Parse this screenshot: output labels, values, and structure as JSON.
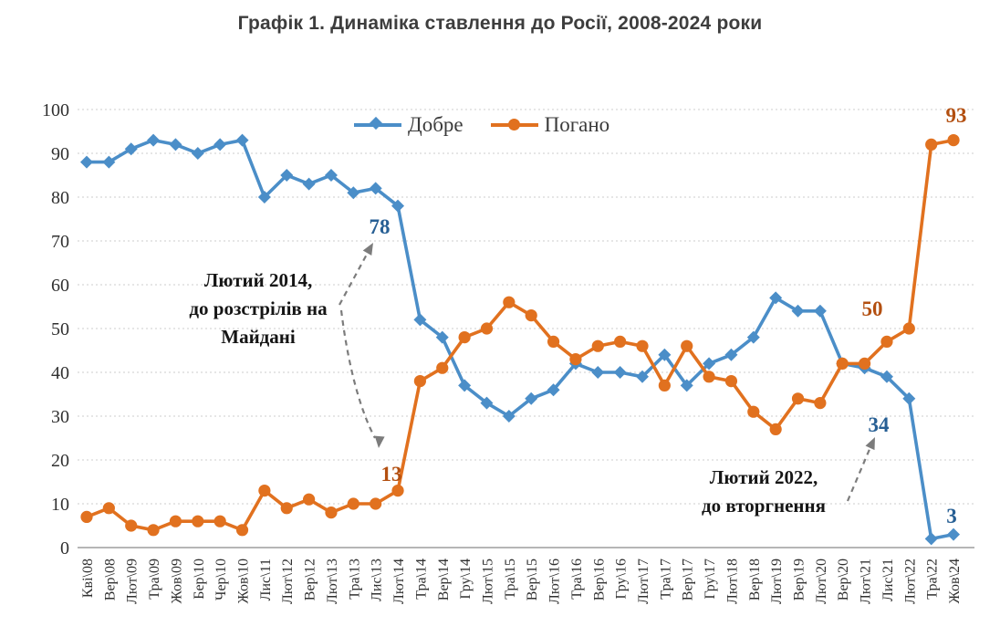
{
  "title": "Графік 1. Динаміка ставлення до Росії, 2008-2024 роки",
  "legend": {
    "good": "Добре",
    "bad": "Погано"
  },
  "colors": {
    "good_line": "#4b8ec8",
    "bad_line": "#e1711f",
    "good_label": "#275f94",
    "bad_label": "#b34f10",
    "grid": "#cdcdcd",
    "axis": "#9e9e9e",
    "tick_text": "#303030",
    "arrow": "#7c7c7c",
    "title_text": "#3d3d3d"
  },
  "annotations": {
    "maidan": {
      "line1": "Лютий 2014,",
      "line2": "до розстрілів на",
      "line3": "Майдані"
    },
    "invasion": {
      "line1": "Лютий 2022,",
      "line2": "до вторгнення"
    }
  },
  "callouts": {
    "good_2014": "78",
    "bad_2014": "13",
    "bad_2022": "50",
    "good_2022": "34",
    "bad_2024": "93",
    "good_2024": "3"
  },
  "chart_data": {
    "type": "line",
    "title": "Графік 1. Динаміка ставлення до Росії, 2008-2024 роки",
    "categories": [
      "Кві\\08",
      "Вер\\08",
      "Лют\\09",
      "Тра\\09",
      "Жов\\09",
      "Бер\\10",
      "Чер\\10",
      "Жов\\10",
      "Лис\\11",
      "Лют\\12",
      "Вер\\12",
      "Лют\\13",
      "Тра\\13",
      "Лис\\13",
      "Лют\\14",
      "Тра\\14",
      "Вер\\14",
      "Гру\\14",
      "Лют\\15",
      "Тра\\15",
      "Вер\\15",
      "Лют\\16",
      "Тра\\16",
      "Вер\\16",
      "Гру\\16",
      "Лют\\17",
      "Тра\\17",
      "Вер\\17",
      "Гру\\17",
      "Лют\\18",
      "Вер\\18",
      "Лют\\19",
      "Вер\\19",
      "Лют\\20",
      "Вер\\20",
      "Лют\\21",
      "Лис\\21",
      "Лют\\22",
      "Тра\\22",
      "Жов\\24"
    ],
    "series": [
      {
        "name": "Добре",
        "marker": "diamond",
        "color": "#4b8ec8",
        "values": [
          88,
          88,
          91,
          93,
          92,
          90,
          92,
          93,
          80,
          85,
          83,
          85,
          81,
          82,
          78,
          52,
          48,
          37,
          33,
          30,
          34,
          36,
          42,
          40,
          40,
          39,
          44,
          37,
          42,
          44,
          48,
          57,
          54,
          54,
          42,
          41,
          39,
          34,
          2,
          3
        ]
      },
      {
        "name": "Погано",
        "marker": "circle",
        "color": "#e1711f",
        "values": [
          7,
          9,
          5,
          4,
          6,
          6,
          6,
          4,
          13,
          9,
          11,
          8,
          10,
          10,
          13,
          38,
          41,
          48,
          50,
          56,
          53,
          47,
          43,
          46,
          47,
          46,
          37,
          46,
          39,
          38,
          31,
          27,
          34,
          33,
          42,
          42,
          47,
          50,
          92,
          93
        ]
      }
    ],
    "point_labels": [
      {
        "series": "Добре",
        "category": "Лют\\14",
        "value": 78
      },
      {
        "series": "Погано",
        "category": "Лют\\14",
        "value": 13
      },
      {
        "series": "Добре",
        "category": "Лют\\22",
        "value": 34
      },
      {
        "series": "Погано",
        "category": "Лют\\22",
        "value": 50
      },
      {
        "series": "Добре",
        "category": "Жов\\24",
        "value": 3
      },
      {
        "series": "Погано",
        "category": "Жов\\24",
        "value": 93
      }
    ],
    "xlabel": "",
    "ylabel": "",
    "ylim": [
      0,
      100
    ],
    "ytick_step": 10,
    "grid": "horizontal-dashed",
    "legend_position": "top-center",
    "annotations": [
      "Лютий 2014, до розстрілів на Майдані",
      "Лютий 2022, до вторгнення"
    ]
  }
}
